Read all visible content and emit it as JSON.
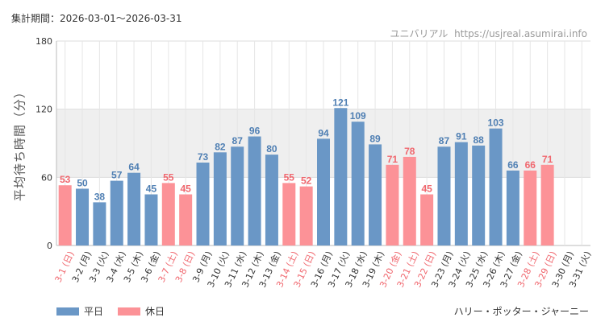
{
  "header": {
    "period_label": "集計期間：2026-03-01〜2026-03-31",
    "site_name": "ユニバリアル",
    "site_url": "https://usjreal.asumirai.info"
  },
  "footer": {
    "attraction_name": "ハリー・ポッター・ジャーニー"
  },
  "colors": {
    "weekday": "#6a97c6",
    "holiday": "#fc9297",
    "weekday_label": "#4f7fb3",
    "holiday_label": "#f0676e",
    "band": "#efefef"
  },
  "chart_data": {
    "type": "bar",
    "ylabel": "平均待ち時間（分）",
    "ylim": [
      0,
      180
    ],
    "yticks": [
      0,
      60,
      120,
      180
    ],
    "grid": true,
    "highlight_band": [
      60,
      120
    ],
    "legend_position": "bottom-left",
    "categories": [
      "3-1 (日)",
      "3-2 (月)",
      "3-3 (火)",
      "3-4 (水)",
      "3-5 (木)",
      "3-6 (金)",
      "3-7 (土)",
      "3-8 (日)",
      "3-9 (月)",
      "3-10 (火)",
      "3-11 (水)",
      "3-12 (木)",
      "3-13 (金)",
      "3-14 (土)",
      "3-15 (日)",
      "3-16 (月)",
      "3-17 (火)",
      "3-18 (水)",
      "3-19 (木)",
      "3-20 (金)",
      "3-21 (土)",
      "3-22 (日)",
      "3-23 (月)",
      "3-24 (火)",
      "3-25 (水)",
      "3-26 (木)",
      "3-27 (金)",
      "3-28 (土)",
      "3-29 (日)",
      "3-30 (月)",
      "3-31 (火)"
    ],
    "values": [
      53,
      50,
      38,
      57,
      64,
      45,
      55,
      45,
      73,
      82,
      87,
      96,
      80,
      55,
      52,
      94,
      121,
      109,
      89,
      71,
      78,
      45,
      87,
      91,
      88,
      103,
      66,
      66,
      71,
      null,
      null
    ],
    "day_type": [
      "休日",
      "平日",
      "平日",
      "平日",
      "平日",
      "平日",
      "休日",
      "休日",
      "平日",
      "平日",
      "平日",
      "平日",
      "平日",
      "休日",
      "休日",
      "平日",
      "平日",
      "平日",
      "平日",
      "休日",
      "休日",
      "休日",
      "平日",
      "平日",
      "平日",
      "平日",
      "平日",
      "休日",
      "休日",
      "平日",
      "平日"
    ],
    "series": [
      {
        "name": "平日",
        "color": "#6a97c6"
      },
      {
        "name": "休日",
        "color": "#fc9297"
      }
    ]
  }
}
